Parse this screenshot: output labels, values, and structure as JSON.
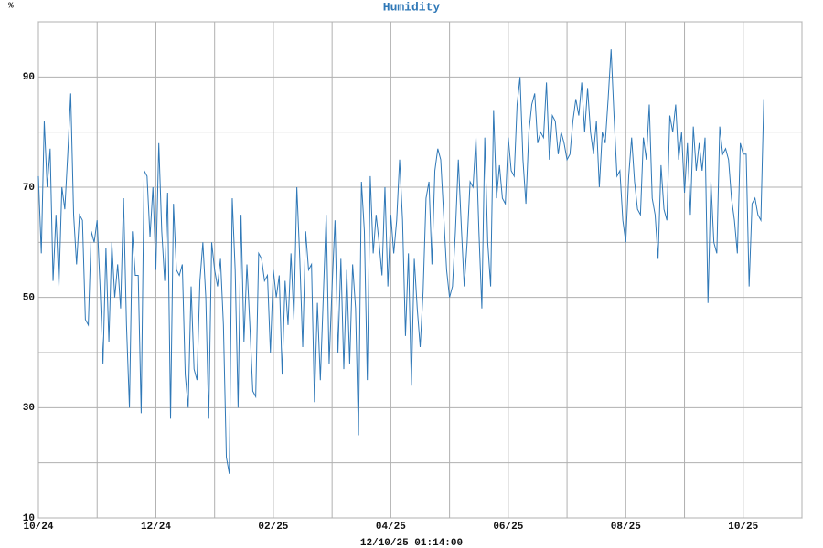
{
  "chart_data": {
    "type": "line",
    "title": "Humidity",
    "y_unit": "%",
    "x_label": "12/10/25 01:14:00",
    "color": "#2f78b7",
    "grid": true,
    "xlim": [
      0,
      13
    ],
    "xticks": [
      {
        "value": 0,
        "label": "10/24"
      },
      {
        "value": 2,
        "label": "12/24"
      },
      {
        "value": 4,
        "label": "02/25"
      },
      {
        "value": 6,
        "label": "04/25"
      },
      {
        "value": 8,
        "label": "06/25"
      },
      {
        "value": 10,
        "label": "08/25"
      },
      {
        "value": 12,
        "label": "10/25"
      }
    ],
    "xminor": [
      1,
      3,
      5,
      7,
      9,
      11,
      13
    ],
    "ylim": [
      10,
      100
    ],
    "yticks": [
      10,
      30,
      50,
      70,
      90
    ],
    "yminor": [
      20,
      40,
      60,
      80,
      100
    ],
    "x": [
      0,
      0.05,
      0.1,
      0.15,
      0.2,
      0.25,
      0.3,
      0.35,
      0.4,
      0.45,
      0.5,
      0.55,
      0.6,
      0.65,
      0.7,
      0.75,
      0.8,
      0.85,
      0.9,
      0.95,
      1,
      1.05,
      1.1,
      1.15,
      1.2,
      1.25,
      1.3,
      1.35,
      1.4,
      1.45,
      1.5,
      1.55,
      1.6,
      1.65,
      1.7,
      1.75,
      1.8,
      1.85,
      1.9,
      1.95,
      2,
      2.05,
      2.1,
      2.15,
      2.2,
      2.25,
      2.3,
      2.35,
      2.4,
      2.45,
      2.5,
      2.55,
      2.6,
      2.65,
      2.7,
      2.75,
      2.8,
      2.85,
      2.9,
      2.95,
      3,
      3.05,
      3.1,
      3.15,
      3.2,
      3.25,
      3.3,
      3.35,
      3.4,
      3.45,
      3.5,
      3.55,
      3.6,
      3.65,
      3.7,
      3.75,
      3.8,
      3.85,
      3.9,
      3.95,
      4,
      4.05,
      4.1,
      4.15,
      4.2,
      4.25,
      4.3,
      4.35,
      4.4,
      4.45,
      4.5,
      4.55,
      4.6,
      4.65,
      4.7,
      4.75,
      4.8,
      4.85,
      4.9,
      4.95,
      5,
      5.05,
      5.1,
      5.15,
      5.2,
      5.25,
      5.3,
      5.35,
      5.4,
      5.45,
      5.5,
      5.55,
      5.6,
      5.65,
      5.7,
      5.75,
      5.8,
      5.85,
      5.9,
      5.95,
      6,
      6.05,
      6.1,
      6.15,
      6.2,
      6.25,
      6.3,
      6.35,
      6.4,
      6.45,
      6.5,
      6.55,
      6.6,
      6.65,
      6.7,
      6.75,
      6.8,
      6.85,
      6.9,
      6.95,
      7,
      7.05,
      7.1,
      7.15,
      7.2,
      7.25,
      7.3,
      7.35,
      7.4,
      7.45,
      7.5,
      7.55,
      7.6,
      7.65,
      7.7,
      7.75,
      7.8,
      7.85,
      7.9,
      7.95,
      8,
      8.05,
      8.1,
      8.15,
      8.2,
      8.25,
      8.3,
      8.35,
      8.4,
      8.45,
      8.5,
      8.55,
      8.6,
      8.65,
      8.7,
      8.75,
      8.8,
      8.85,
      8.9,
      8.95,
      9,
      9.05,
      9.1,
      9.15,
      9.2,
      9.25,
      9.3,
      9.35,
      9.4,
      9.45,
      9.5,
      9.55,
      9.6,
      9.65,
      9.7,
      9.75,
      9.8,
      9.85,
      9.9,
      9.95,
      10,
      10.05,
      10.1,
      10.15,
      10.2,
      10.25,
      10.3,
      10.35,
      10.4,
      10.45,
      10.5,
      10.55,
      10.6,
      10.65,
      10.7,
      10.75,
      10.8,
      10.85,
      10.9,
      10.95,
      11,
      11.05,
      11.1,
      11.15,
      11.2,
      11.25,
      11.3,
      11.35,
      11.4,
      11.45,
      11.5,
      11.55,
      11.6,
      11.65,
      11.7,
      11.75,
      11.8,
      11.85,
      11.9,
      11.95,
      12,
      12.05,
      12.1,
      12.15,
      12.2,
      12.25,
      12.3,
      12.35
    ],
    "values": [
      72,
      58,
      82,
      70,
      77,
      53,
      65,
      52,
      70,
      66,
      76,
      87,
      65,
      56,
      65,
      64,
      46,
      45,
      62,
      60,
      64,
      52,
      38,
      59,
      42,
      60,
      50,
      56,
      48,
      68,
      45,
      30,
      62,
      54,
      54,
      29,
      73,
      72,
      61,
      70,
      55,
      78,
      62,
      53,
      69,
      28,
      67,
      55,
      54,
      56,
      36,
      30,
      52,
      37,
      35,
      53,
      60,
      50,
      28,
      60,
      55,
      52,
      57,
      45,
      21,
      18,
      68,
      55,
      30,
      65,
      42,
      56,
      45,
      33,
      32,
      58,
      57,
      53,
      54,
      40,
      55,
      50,
      54,
      36,
      53,
      45,
      58,
      46,
      70,
      57,
      41,
      62,
      55,
      56,
      31,
      49,
      35,
      50,
      65,
      38,
      52,
      64,
      40,
      57,
      37,
      55,
      38,
      56,
      48,
      25,
      71,
      62,
      35,
      72,
      58,
      65,
      60,
      54,
      70,
      52,
      65,
      58,
      64,
      75,
      64,
      43,
      58,
      34,
      57,
      48,
      41,
      51,
      68,
      71,
      56,
      73,
      77,
      75,
      65,
      55,
      50,
      52,
      62,
      75,
      63,
      52,
      60,
      71,
      70,
      79,
      62,
      48,
      79,
      60,
      52,
      84,
      68,
      74,
      68,
      67,
      79,
      73,
      72,
      85,
      90,
      75,
      67,
      80,
      85,
      87,
      78,
      80,
      79,
      89,
      75,
      83,
      82,
      76,
      80,
      78,
      75,
      76,
      82,
      86,
      83,
      89,
      80,
      88,
      80,
      76,
      82,
      70,
      80,
      78,
      86,
      95,
      83,
      72,
      73,
      64,
      60,
      72,
      79,
      71,
      66,
      65,
      79,
      75,
      85,
      68,
      65,
      57,
      74,
      66,
      64,
      83,
      80,
      85,
      75,
      80,
      69,
      78,
      65,
      81,
      73,
      78,
      73,
      79,
      49,
      71,
      60,
      58,
      81,
      76,
      77,
      75,
      68,
      64,
      58,
      78,
      76,
      76,
      52,
      67,
      68,
      65,
      64,
      86
    ]
  }
}
